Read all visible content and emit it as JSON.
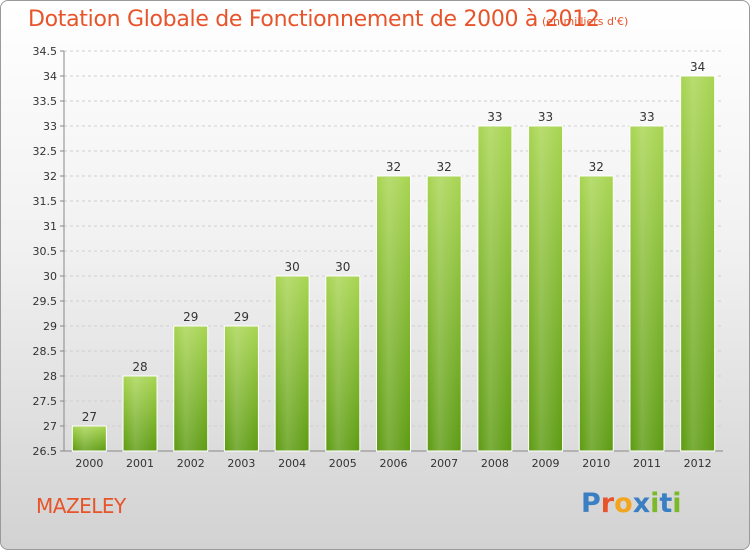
{
  "title": "Dotation Globale de Fonctionnement de 2000 à 2012",
  "unit": "(en milliers d'€)",
  "commune": "MAZELEY",
  "brand": {
    "letters": [
      "P",
      "r",
      "o",
      "x",
      "i",
      "t",
      "i"
    ],
    "colors": [
      "#3a7fc4",
      "#e8542a",
      "#f2a51e",
      "#3a7fc4",
      "#7ab929",
      "#3a7fc4",
      "#7ab929"
    ]
  },
  "colors": {
    "bar_top": "#a8d552",
    "bar_bottom": "#5e9c13",
    "text_accent": "#e8542a",
    "axis_text": "#333333"
  },
  "chart_data": {
    "type": "bar",
    "title": "Dotation Globale de Fonctionnement de 2000 à 2012",
    "ylabel": "(en milliers d'€)",
    "categories": [
      "2000",
      "2001",
      "2002",
      "2003",
      "2004",
      "2005",
      "2006",
      "2007",
      "2008",
      "2009",
      "2010",
      "2011",
      "2012"
    ],
    "values": [
      27,
      28,
      29,
      29,
      30,
      30,
      32,
      32,
      33,
      33,
      32,
      33,
      34
    ],
    "ylim": [
      26.5,
      34.5
    ],
    "yticks": [
      "26.5",
      "27",
      "27.5",
      "28",
      "28.5",
      "29",
      "29.5",
      "30",
      "30.5",
      "31",
      "31.5",
      "32",
      "32.5",
      "33",
      "33.5",
      "34",
      "34.5"
    ],
    "grid": true
  }
}
